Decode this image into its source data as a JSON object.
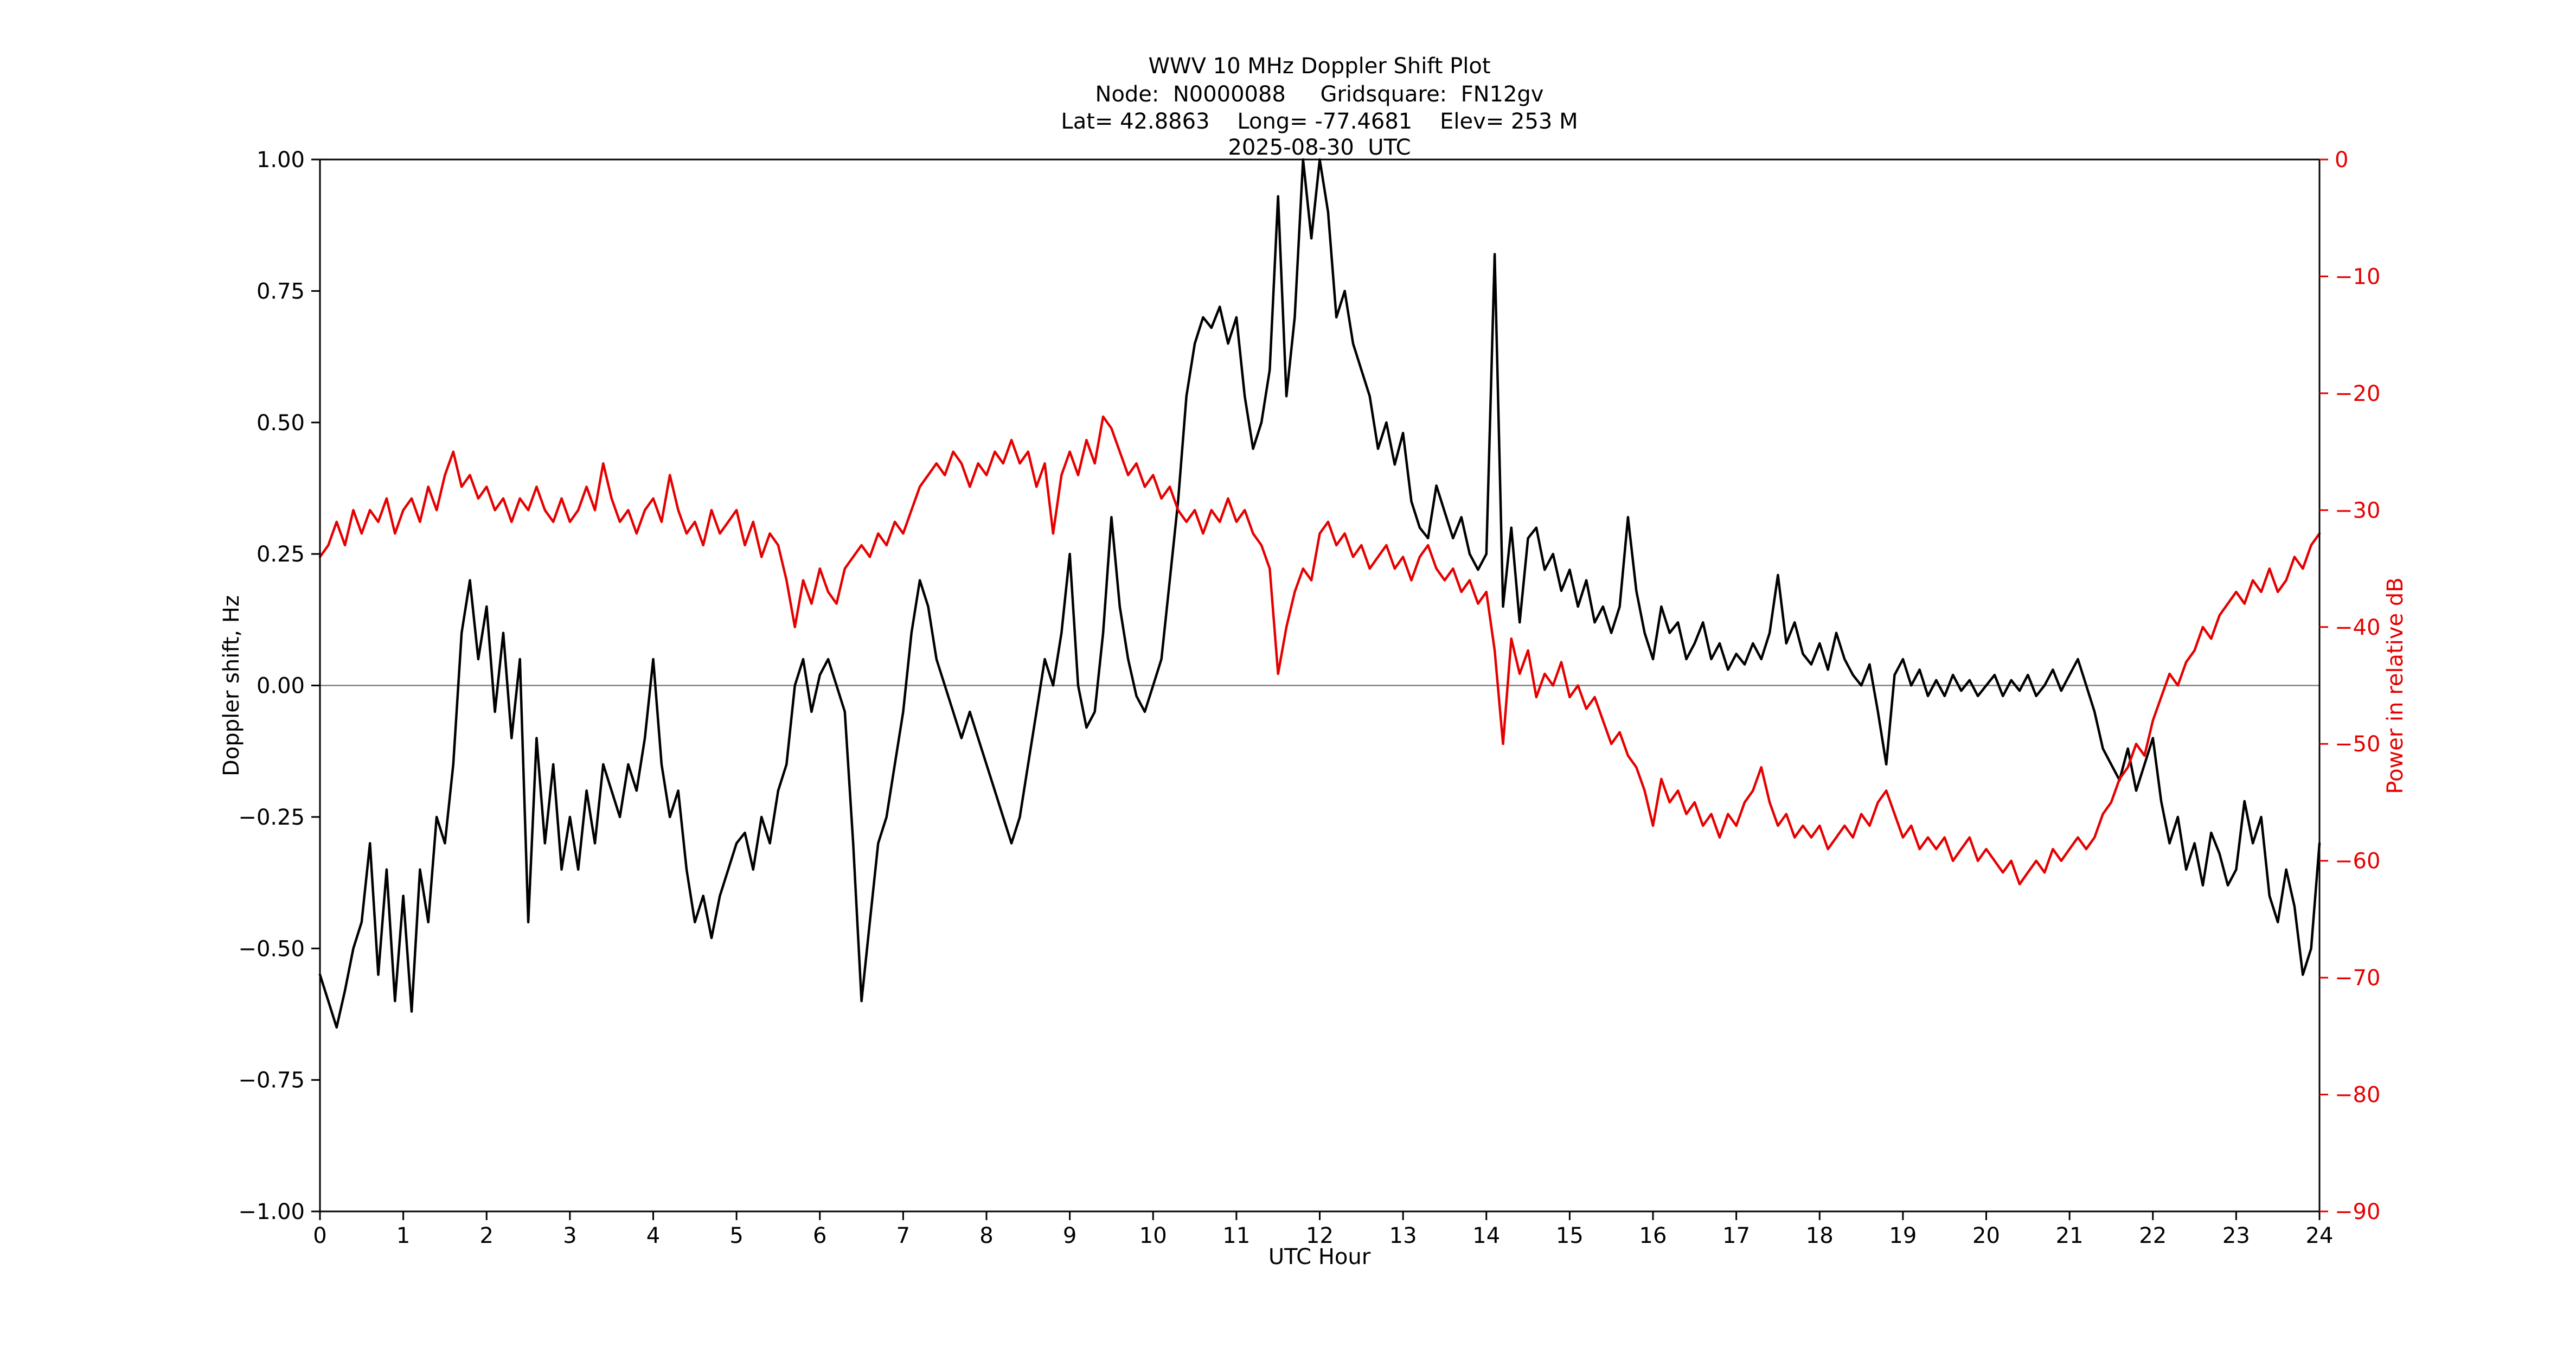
{
  "chart_data": {
    "type": "line",
    "title_lines": [
      "WWV 10 MHz Doppler Shift Plot",
      "Node:  N0000088     Gridsquare:  FN12gv",
      "Lat= 42.8863    Long= -77.4681    Elev= 253 M",
      "2025-08-30  UTC"
    ],
    "xlabel": "UTC Hour",
    "ylabel_left": "Doppler shift, Hz",
    "ylabel_right": "Power in relative dB",
    "x_range": [
      0,
      24
    ],
    "y_range_left": [
      -1.0,
      1.0
    ],
    "y_range_right": [
      -90,
      0
    ],
    "grid": "off",
    "legend": "none",
    "zero_line": {
      "y": 0.0,
      "color": "#808080"
    },
    "colors": {
      "doppler": "#000000",
      "power": "#e60000",
      "frame": "#000000"
    },
    "x_ticks": {
      "values": [
        0,
        1,
        2,
        3,
        4,
        5,
        6,
        7,
        8,
        9,
        10,
        11,
        12,
        13,
        14,
        15,
        16,
        17,
        18,
        19,
        20,
        21,
        22,
        23,
        24
      ],
      "labels": [
        "0",
        "1",
        "2",
        "3",
        "4",
        "5",
        "6",
        "7",
        "8",
        "9",
        "10",
        "11",
        "12",
        "13",
        "14",
        "15",
        "16",
        "17",
        "18",
        "19",
        "20",
        "21",
        "22",
        "23",
        "24"
      ]
    },
    "y_ticks_left": {
      "values": [
        1.0,
        0.75,
        0.5,
        0.25,
        0.0,
        -0.25,
        -0.5,
        -0.75,
        -1.0
      ],
      "labels": [
        "1.00",
        "0.75",
        "0.50",
        "0.25",
        "0.00",
        "−0.25",
        "−0.50",
        "−0.75",
        "−1.00"
      ]
    },
    "y_ticks_right": {
      "values": [
        0,
        -10,
        -20,
        -30,
        -40,
        -50,
        -60,
        -70,
        -80,
        -90
      ],
      "labels": [
        "0",
        "−10",
        "−20",
        "−30",
        "−40",
        "−50",
        "−60",
        "−70",
        "−80",
        "−90"
      ]
    },
    "x_start": 0,
    "x_step": 0.1,
    "series": [
      {
        "name": "Doppler shift",
        "axis": "left",
        "color": "#000000",
        "values": [
          -0.55,
          -0.6,
          -0.65,
          -0.58,
          -0.5,
          -0.45,
          -0.3,
          -0.55,
          -0.35,
          -0.6,
          -0.4,
          -0.62,
          -0.35,
          -0.45,
          -0.25,
          -0.3,
          -0.15,
          0.1,
          0.2,
          0.05,
          0.15,
          -0.05,
          0.1,
          -0.1,
          0.05,
          -0.45,
          -0.1,
          -0.3,
          -0.15,
          -0.35,
          -0.25,
          -0.35,
          -0.2,
          -0.3,
          -0.15,
          -0.2,
          -0.25,
          -0.15,
          -0.2,
          -0.1,
          0.05,
          -0.15,
          -0.25,
          -0.2,
          -0.35,
          -0.45,
          -0.4,
          -0.48,
          -0.4,
          -0.35,
          -0.3,
          -0.28,
          -0.35,
          -0.25,
          -0.3,
          -0.2,
          -0.15,
          0.0,
          0.05,
          -0.05,
          0.02,
          0.05,
          0.0,
          -0.05,
          -0.3,
          -0.6,
          -0.45,
          -0.3,
          -0.25,
          -0.15,
          -0.05,
          0.1,
          0.2,
          0.15,
          0.05,
          0.0,
          -0.05,
          -0.1,
          -0.05,
          -0.1,
          -0.15,
          -0.2,
          -0.25,
          -0.3,
          -0.25,
          -0.15,
          -0.05,
          0.05,
          0.0,
          0.1,
          0.25,
          0.0,
          -0.08,
          -0.05,
          0.1,
          0.32,
          0.15,
          0.05,
          -0.02,
          -0.05,
          0.0,
          0.05,
          0.2,
          0.35,
          0.55,
          0.65,
          0.7,
          0.68,
          0.72,
          0.65,
          0.7,
          0.55,
          0.45,
          0.5,
          0.6,
          0.93,
          0.55,
          0.7,
          1.0,
          0.85,
          1.0,
          0.9,
          0.7,
          0.75,
          0.65,
          0.6,
          0.55,
          0.45,
          0.5,
          0.42,
          0.48,
          0.35,
          0.3,
          0.28,
          0.38,
          0.33,
          0.28,
          0.32,
          0.25,
          0.22,
          0.25,
          0.82,
          0.15,
          0.3,
          0.12,
          0.28,
          0.3,
          0.22,
          0.25,
          0.18,
          0.22,
          0.15,
          0.2,
          0.12,
          0.15,
          0.1,
          0.15,
          0.32,
          0.18,
          0.1,
          0.05,
          0.15,
          0.1,
          0.12,
          0.05,
          0.08,
          0.12,
          0.05,
          0.08,
          0.03,
          0.06,
          0.04,
          0.08,
          0.05,
          0.1,
          0.21,
          0.08,
          0.12,
          0.06,
          0.04,
          0.08,
          0.03,
          0.1,
          0.05,
          0.02,
          0.0,
          0.04,
          -0.05,
          -0.15,
          0.02,
          0.05,
          0.0,
          0.03,
          -0.02,
          0.01,
          -0.02,
          0.02,
          -0.01,
          0.01,
          -0.02,
          0.0,
          0.02,
          -0.02,
          0.01,
          -0.01,
          0.02,
          -0.02,
          0.0,
          0.03,
          -0.01,
          0.02,
          0.05,
          0.0,
          -0.05,
          -0.12,
          -0.15,
          -0.18,
          -0.12,
          -0.2,
          -0.15,
          -0.1,
          -0.22,
          -0.3,
          -0.25,
          -0.35,
          -0.3,
          -0.38,
          -0.28,
          -0.32,
          -0.38,
          -0.35,
          -0.22,
          -0.3,
          -0.25,
          -0.4,
          -0.45,
          -0.35,
          -0.42,
          -0.55,
          -0.5,
          -0.3
        ]
      },
      {
        "name": "Power in relative dB",
        "axis": "right",
        "color": "#e60000",
        "values": [
          -34,
          -33,
          -31,
          -33,
          -30,
          -32,
          -30,
          -31,
          -29,
          -32,
          -30,
          -29,
          -31,
          -28,
          -30,
          -27,
          -25,
          -28,
          -27,
          -29,
          -28,
          -30,
          -29,
          -31,
          -29,
          -30,
          -28,
          -30,
          -31,
          -29,
          -31,
          -30,
          -28,
          -30,
          -26,
          -29,
          -31,
          -30,
          -32,
          -30,
          -29,
          -31,
          -27,
          -30,
          -32,
          -31,
          -33,
          -30,
          -32,
          -31,
          -30,
          -33,
          -31,
          -34,
          -32,
          -33,
          -36,
          -40,
          -36,
          -38,
          -35,
          -37,
          -38,
          -35,
          -34,
          -33,
          -34,
          -32,
          -33,
          -31,
          -32,
          -30,
          -28,
          -27,
          -26,
          -27,
          -25,
          -26,
          -28,
          -26,
          -27,
          -25,
          -26,
          -24,
          -26,
          -25,
          -28,
          -26,
          -32,
          -27,
          -25,
          -27,
          -24,
          -26,
          -22,
          -23,
          -25,
          -27,
          -26,
          -28,
          -27,
          -29,
          -28,
          -30,
          -31,
          -30,
          -32,
          -30,
          -31,
          -29,
          -31,
          -30,
          -32,
          -33,
          -35,
          -44,
          -40,
          -37,
          -35,
          -36,
          -32,
          -31,
          -33,
          -32,
          -34,
          -33,
          -35,
          -34,
          -33,
          -35,
          -34,
          -36,
          -34,
          -33,
          -35,
          -36,
          -35,
          -37,
          -36,
          -38,
          -37,
          -42,
          -50,
          -41,
          -44,
          -42,
          -46,
          -44,
          -45,
          -43,
          -46,
          -45,
          -47,
          -46,
          -48,
          -50,
          -49,
          -51,
          -52,
          -54,
          -57,
          -53,
          -55,
          -54,
          -56,
          -55,
          -57,
          -56,
          -58,
          -56,
          -57,
          -55,
          -54,
          -52,
          -55,
          -57,
          -56,
          -58,
          -57,
          -58,
          -57,
          -59,
          -58,
          -57,
          -58,
          -56,
          -57,
          -55,
          -54,
          -56,
          -58,
          -57,
          -59,
          -58,
          -59,
          -58,
          -60,
          -59,
          -58,
          -60,
          -59,
          -60,
          -61,
          -60,
          -62,
          -61,
          -60,
          -61,
          -59,
          -60,
          -59,
          -58,
          -59,
          -58,
          -56,
          -55,
          -53,
          -52,
          -50,
          -51,
          -48,
          -46,
          -44,
          -45,
          -43,
          -42,
          -40,
          -41,
          -39,
          -38,
          -37,
          -38,
          -36,
          -37,
          -35,
          -37,
          -36,
          -34,
          -35,
          -33,
          -32
        ]
      }
    ]
  }
}
